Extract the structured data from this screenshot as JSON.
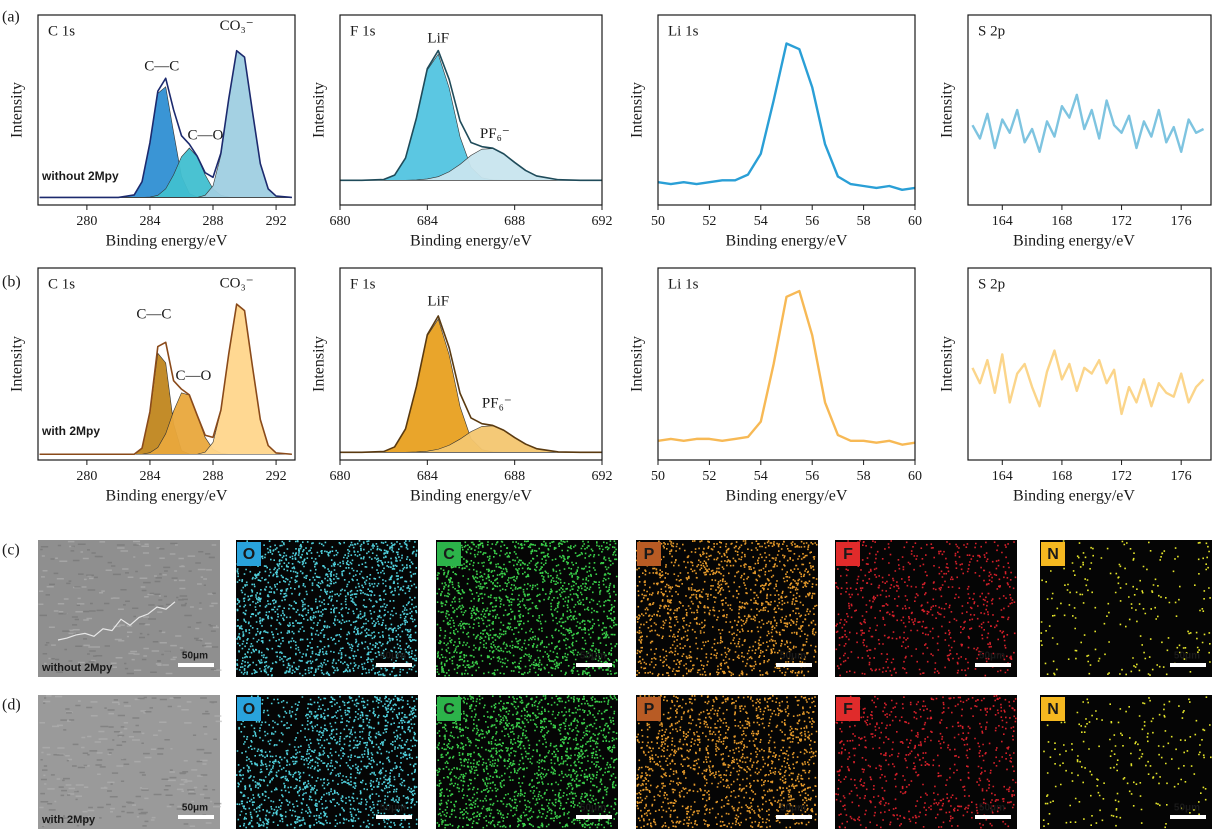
{
  "panel_labels": [
    "(a)",
    "(b)",
    "(c)",
    "(d)"
  ],
  "samples": [
    {
      "name": "without 2Mpy",
      "color": "#5ab6dd"
    },
    {
      "name": "with 2Mpy",
      "color": "#e8a236"
    }
  ],
  "chart_data": [
    {
      "type": "line",
      "title": "C 1s",
      "xlabel": "Binding energy/eV",
      "ylabel": "Intensity",
      "x": [
        277,
        278,
        279,
        280,
        281,
        282,
        283,
        283.5,
        284,
        284.5,
        285,
        285.5,
        286,
        286.5,
        287,
        287.5,
        288,
        288.5,
        289,
        289.5,
        290,
        290.5,
        291,
        291.5,
        292,
        293
      ],
      "xlim": [
        276.9,
        293.2
      ],
      "xticks": [
        280,
        284,
        288,
        292
      ],
      "ylim": [
        0,
        100
      ],
      "series": [
        {
          "name": "C—C",
          "color": "#2f8fd3",
          "fill": true,
          "values": [
            4,
            4,
            4,
            4,
            4,
            4,
            5.3,
            12.3,
            32.6,
            58.8,
            62.2,
            38.2,
            15.1,
            6,
            4.2,
            4,
            4,
            4,
            4,
            4,
            4,
            4,
            4,
            4,
            4,
            4
          ]
        },
        {
          "name": "C—O",
          "color": "#40bfd0",
          "fill": true,
          "values": [
            4,
            4,
            4,
            4,
            4,
            4,
            4,
            4,
            4.2,
            5.1,
            8.5,
            15.9,
            25.4,
            30,
            25.4,
            15.9,
            8.5,
            5.1,
            4.2,
            4,
            4,
            4,
            4,
            4,
            4,
            4
          ]
        },
        {
          "name": "CO₃⁻",
          "color": "#9fcfe2",
          "fill": true,
          "values": [
            4,
            4,
            4,
            4,
            4,
            4,
            4,
            4,
            4,
            4,
            4,
            4,
            4,
            4,
            4,
            5.1,
            10.1,
            26.2,
            55.8,
            81.2,
            77.8,
            49.3,
            21.8,
            8.5,
            4.7,
            4
          ]
        },
        {
          "color": "#1c2a6e",
          "fill": false,
          "values": [
            4,
            4,
            4,
            4,
            4,
            4,
            5.3,
            12.3,
            32.8,
            59.9,
            66.7,
            50.1,
            36.5,
            32,
            25.6,
            17,
            14.6,
            27.3,
            56,
            81.2,
            77.8,
            49.3,
            21.8,
            8.5,
            4.7,
            4
          ]
        }
      ]
    },
    {
      "type": "line",
      "title": "F 1s",
      "xlabel": "Binding energy/eV",
      "ylabel": "Intensity",
      "x": [
        680,
        681,
        682,
        682.5,
        683,
        683.5,
        684,
        684.5,
        685,
        685.5,
        686,
        686.5,
        687,
        687.5,
        688,
        688.5,
        689,
        690,
        691,
        692
      ],
      "xlim": [
        680,
        692
      ],
      "xticks": [
        680,
        684,
        688,
        692
      ],
      "ylim": [
        0,
        100
      ],
      "series": [
        {
          "name": "LiF",
          "color": "#52c4e0",
          "fill": true,
          "values": [
            13,
            13,
            13.4,
            15.7,
            24.7,
            45.6,
            71.1,
            79.4,
            61.6,
            35.8,
            19.8,
            14.3,
            13.2,
            13,
            13,
            13,
            13,
            13,
            13,
            13
          ]
        },
        {
          "name": "PF₆⁻",
          "color": "#c8e5ee",
          "fill": true,
          "values": [
            13,
            13,
            13,
            13,
            13,
            13.2,
            13.7,
            14.9,
            17.5,
            21.4,
            26.1,
            29.4,
            29.7,
            26.9,
            22.4,
            18.2,
            15.3,
            13.3,
            13,
            13
          ]
        },
        {
          "color": "#1f4b5a",
          "fill": false,
          "values": [
            13,
            13,
            13.4,
            15.7,
            24.7,
            45.8,
            71.8,
            81.3,
            66.1,
            44.2,
            32.9,
            30.7,
            29.9,
            26.9,
            22.4,
            18.2,
            15.3,
            13.3,
            13,
            13
          ]
        }
      ]
    },
    {
      "type": "line",
      "title": "Li 1s",
      "xlabel": "Binding energy/eV",
      "ylabel": "Intensity",
      "x": [
        50,
        50.5,
        51,
        51.5,
        52,
        52.5,
        53,
        53.5,
        54,
        54.5,
        55,
        55.5,
        56,
        56.5,
        57,
        57.5,
        58,
        58.5,
        59,
        59.5,
        60
      ],
      "xlim": [
        50,
        60
      ],
      "xticks": [
        50,
        52,
        54,
        56,
        58,
        60
      ],
      "ylim": [
        0,
        100
      ],
      "series": [
        {
          "color": "#2a9fd6",
          "fill": false,
          "values": [
            12,
            11,
            12,
            11,
            12,
            13,
            13,
            16,
            27,
            55,
            85,
            82,
            62,
            32,
            15,
            11,
            10,
            9,
            10,
            8,
            9
          ]
        }
      ]
    },
    {
      "type": "line",
      "title": "S 2p",
      "xlabel": "Binding energy/eV",
      "ylabel": "Intensity",
      "x": [
        162,
        162.5,
        163,
        163.5,
        164,
        164.5,
        165,
        165.5,
        166,
        166.5,
        167,
        167.5,
        168,
        168.5,
        169,
        169.5,
        170,
        170.5,
        171,
        171.5,
        172,
        172.5,
        173,
        173.5,
        174,
        174.5,
        175,
        175.5,
        176,
        176.5,
        177,
        177.5
      ],
      "xlim": [
        161.7,
        178
      ],
      "xticks": [
        164,
        168,
        172,
        176
      ],
      "ylim": [
        0,
        100
      ],
      "series": [
        {
          "color": "#7ec4e0",
          "fill": false,
          "values": [
            42,
            35,
            48,
            30,
            45,
            38,
            50,
            33,
            40,
            28,
            44,
            36,
            52,
            46,
            58,
            40,
            50,
            35,
            55,
            42,
            38,
            47,
            30,
            44,
            36,
            50,
            33,
            41,
            28,
            45,
            38,
            40
          ]
        }
      ]
    },
    {
      "type": "line",
      "title": "C 1s",
      "xlabel": "Binding energy/eV",
      "ylabel": "Intensity",
      "x": [
        277,
        278,
        279,
        280,
        281,
        282,
        283,
        283.5,
        284,
        284.5,
        285,
        285.5,
        286,
        286.5,
        287,
        287.5,
        288,
        288.5,
        289,
        289.5,
        290,
        290.5,
        291,
        291.5,
        292,
        293
      ],
      "xlim": [
        276.9,
        293.2
      ],
      "xticks": [
        280,
        284,
        288,
        292
      ],
      "ylim": [
        0,
        100
      ],
      "series": [
        {
          "name": "C—C",
          "color": "#c0861e",
          "fill": true,
          "values": [
            3,
            3,
            3,
            3,
            3,
            3,
            3,
            6.2,
            24.4,
            55.6,
            50.6,
            18.8,
            4.9,
            3.1,
            3,
            3,
            3,
            3,
            3,
            3,
            3,
            3,
            3,
            3,
            3,
            3
          ]
        },
        {
          "name": "C—O",
          "color": "#e9a83c",
          "fill": true,
          "values": [
            3,
            3,
            3,
            3,
            3,
            3,
            3,
            3,
            3.8,
            6.5,
            13.7,
            25.5,
            35,
            33.8,
            23,
            11.8,
            5.6,
            3.5,
            3,
            3,
            3,
            3,
            3,
            3,
            3,
            3
          ]
        },
        {
          "name": "CO₃⁻",
          "color": "#ffd68c",
          "fill": true,
          "values": [
            3,
            3,
            3,
            3,
            3,
            3,
            3,
            3,
            3,
            3,
            3,
            3,
            3,
            3,
            3,
            4.1,
            9.2,
            25.5,
            55.4,
            81.2,
            77.8,
            48.8,
            21.1,
            7.5,
            3.7,
            3
          ]
        },
        {
          "color": "#8a4a1a",
          "fill": false,
          "values": [
            3,
            3,
            3,
            3,
            3,
            3,
            3,
            6.2,
            25.2,
            59.1,
            61.3,
            41.3,
            36.9,
            33.9,
            23.2,
            12.9,
            11.8,
            26,
            55.4,
            81.2,
            77.8,
            48.8,
            21.1,
            7.5,
            3.7,
            3
          ]
        }
      ]
    },
    {
      "type": "line",
      "title": "F 1s",
      "xlabel": "Binding energy/eV",
      "ylabel": "Intensity",
      "x": [
        680,
        681,
        682,
        682.5,
        683,
        683.5,
        684,
        684.5,
        685,
        685.5,
        686,
        686.5,
        687,
        687.5,
        688,
        688.5,
        689,
        690,
        691,
        692
      ],
      "xlim": [
        680,
        692
      ],
      "xticks": [
        680,
        684,
        688,
        692
      ],
      "ylim": [
        0,
        100
      ],
      "series": [
        {
          "name": "LiF",
          "color": "#e8a020",
          "fill": true,
          "values": [
            4,
            4,
            4.4,
            6.8,
            16.2,
            38.1,
            64.7,
            73.4,
            54.8,
            27.8,
            11.1,
            5.4,
            4.2,
            4,
            4,
            4,
            4,
            4,
            4,
            4
          ]
        },
        {
          "name": "PF₆⁻",
          "color": "#f3c670",
          "fill": true,
          "values": [
            4,
            4,
            4,
            4,
            4,
            4.2,
            4.6,
            5.6,
            7.7,
            10.9,
            14.8,
            17.5,
            17.8,
            15.5,
            11.7,
            8.3,
            5.9,
            4.2,
            4,
            4
          ]
        },
        {
          "color": "#5a3a10",
          "fill": false,
          "values": [
            4,
            4,
            4.4,
            6.8,
            16.2,
            38.3,
            65.3,
            75,
            58.5,
            34.7,
            21.9,
            18.9,
            18,
            15.5,
            11.7,
            8.3,
            5.9,
            4.2,
            4,
            4
          ]
        }
      ]
    },
    {
      "type": "line",
      "title": "Li 1s",
      "xlabel": "Binding energy/eV",
      "ylabel": "Intensity",
      "x": [
        50,
        50.5,
        51,
        51.5,
        52,
        52.5,
        53,
        53.5,
        54,
        54.5,
        55,
        55.5,
        56,
        56.5,
        57,
        57.5,
        58,
        58.5,
        59,
        59.5,
        60
      ],
      "xlim": [
        50,
        60
      ],
      "xticks": [
        50,
        52,
        54,
        56,
        58,
        60
      ],
      "ylim": [
        0,
        100
      ],
      "series": [
        {
          "color": "#f7b955",
          "fill": false,
          "values": [
            10,
            11,
            10,
            11,
            11,
            10,
            11,
            12,
            20,
            50,
            85,
            88,
            65,
            30,
            13,
            10,
            10,
            9,
            10,
            8,
            9
          ]
        }
      ]
    },
    {
      "type": "line",
      "title": "S 2p",
      "xlabel": "Binding energy/eV",
      "ylabel": "Intensity",
      "x": [
        162,
        162.5,
        163,
        163.5,
        164,
        164.5,
        165,
        165.5,
        166,
        166.5,
        167,
        167.5,
        168,
        168.5,
        169,
        169.5,
        170,
        170.5,
        171,
        171.5,
        172,
        172.5,
        173,
        173.5,
        174,
        174.5,
        175,
        175.5,
        176,
        176.5,
        177,
        177.5
      ],
      "xlim": [
        161.7,
        178
      ],
      "xticks": [
        164,
        168,
        172,
        176
      ],
      "ylim": [
        0,
        100
      ],
      "series": [
        {
          "color": "#fbd58a",
          "fill": false,
          "values": [
            48,
            40,
            52,
            35,
            55,
            30,
            45,
            50,
            38,
            28,
            46,
            57,
            42,
            50,
            36,
            48,
            45,
            52,
            40,
            47,
            24,
            38,
            30,
            42,
            28,
            40,
            35,
            33,
            45,
            30,
            38,
            42
          ]
        }
      ]
    }
  ],
  "eds": {
    "scale_bar": "50μm",
    "maps": [
      {
        "element": "O",
        "badge_color": "#29a3dc",
        "text_color": "#ffffff",
        "dot_color": "#4fd0dc"
      },
      {
        "element": "C",
        "badge_color": "#2cb34a",
        "text_color": "#ffffff",
        "dot_color": "#3ad04a"
      },
      {
        "element": "P",
        "badge_color": "#b85b24",
        "text_color": "#ffffff",
        "dot_color": "#e69a2a"
      },
      {
        "element": "F",
        "badge_color": "#e02b2b",
        "text_color": "#ffffff",
        "dot_color": "#d8202a"
      },
      {
        "element": "N",
        "badge_color": "#f5b820",
        "text_color": "#1a1a1a",
        "dot_color": "#e5e52a"
      }
    ]
  }
}
